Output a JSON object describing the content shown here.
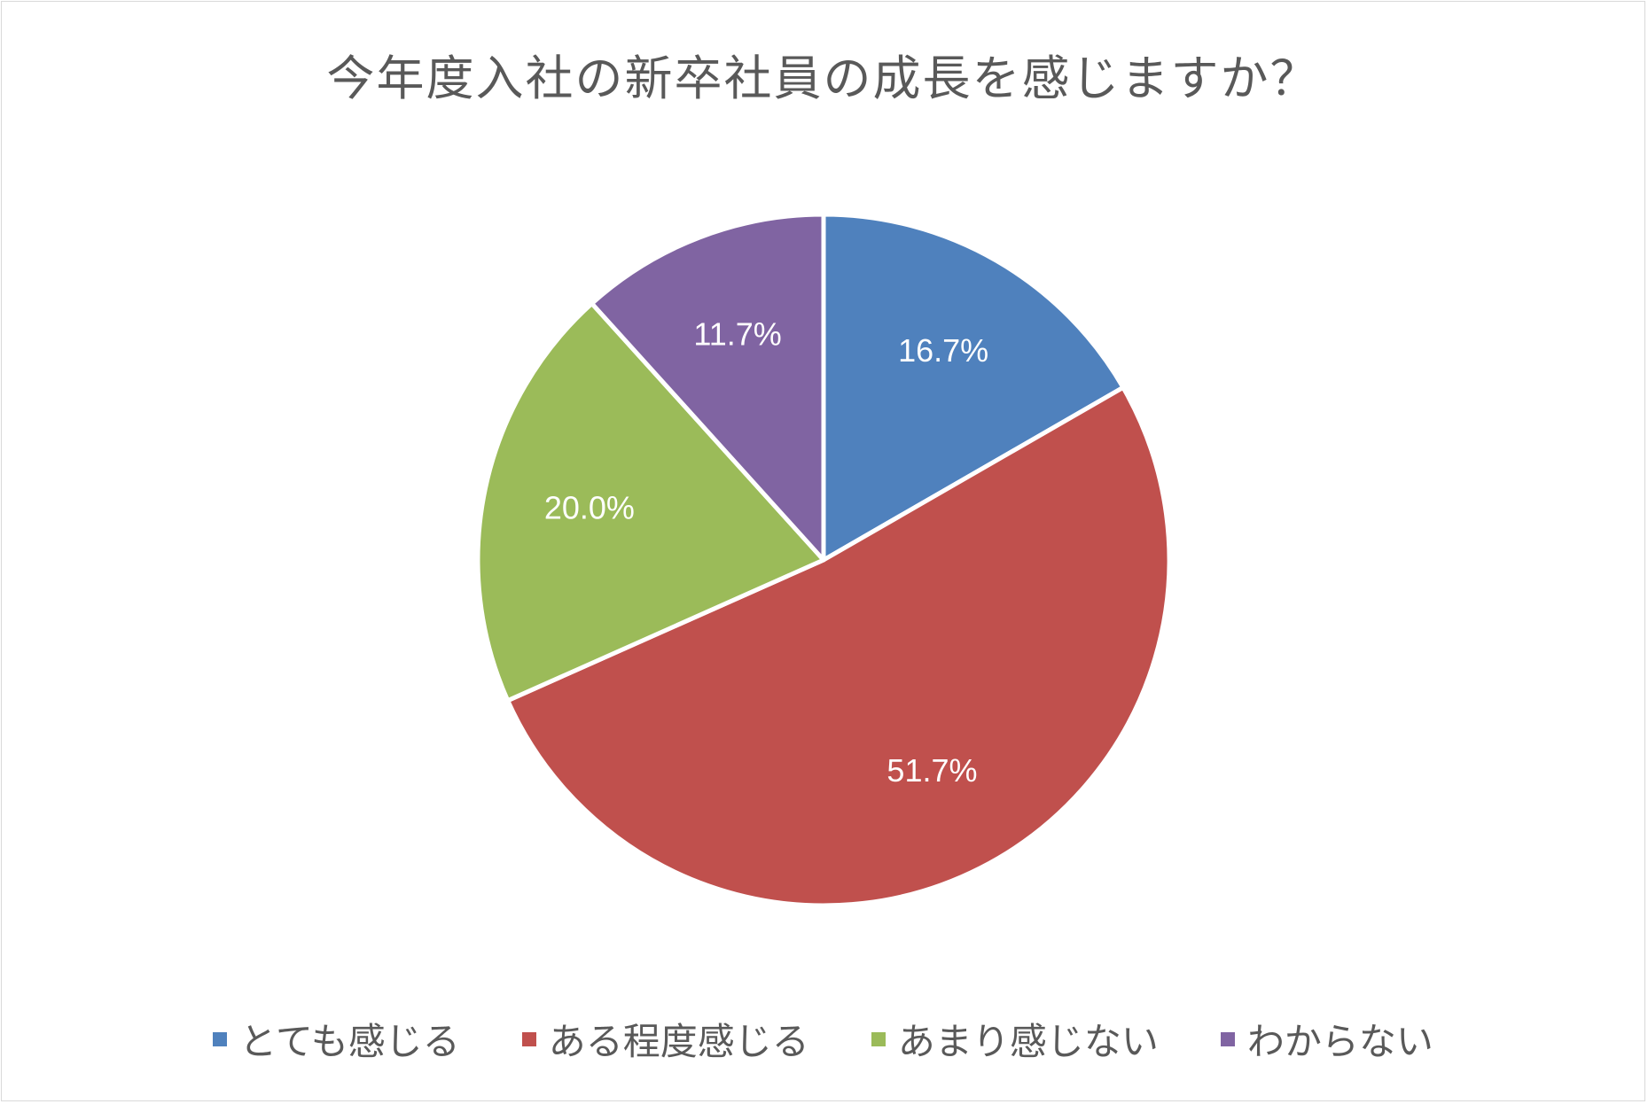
{
  "chart_data": {
    "type": "pie",
    "title": "今年度入社の新卒社員の成長を感じますか？",
    "categories": [
      "とても感じる",
      "ある程度感じる",
      "あまり感じない",
      "わからない"
    ],
    "values": [
      16.7,
      51.7,
      20.0,
      11.7
    ],
    "data_labels": [
      "16.7%",
      "51.7%",
      "20.0%",
      "11.7%"
    ],
    "colors": [
      "#4f81bd",
      "#c0504d",
      "#9bbb59",
      "#8064a2"
    ],
    "start_angle": "12 o'clock",
    "direction": "clockwise",
    "legend_position": "bottom"
  }
}
